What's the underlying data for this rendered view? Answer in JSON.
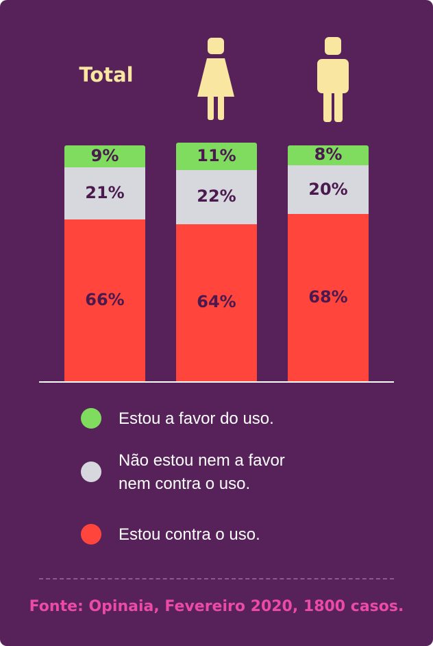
{
  "chart_data": {
    "type": "bar",
    "stacked": true,
    "categories": [
      "Total",
      "female-person-icon",
      "male-person-icon"
    ],
    "category_labels": [
      "Total",
      "",
      ""
    ],
    "series": [
      {
        "name": "Estou a favor do uso.",
        "color": "#7fdc5f",
        "values": [
          9,
          11,
          8
        ],
        "labels": [
          "9%",
          "11%",
          "8%"
        ]
      },
      {
        "name": "Não estou nem a favor nem contra o uso.",
        "color": "#d6d8dd",
        "values": [
          21,
          22,
          20
        ],
        "labels": [
          "21%",
          "22%",
          "20%"
        ]
      },
      {
        "name": "Estou contra o uso.",
        "color": "#ff453c",
        "values": [
          66,
          64,
          68
        ],
        "labels": [
          "66%",
          "64%",
          "68%"
        ]
      }
    ],
    "ylim": [
      0,
      96
    ]
  },
  "legend": [
    {
      "color": "#7fdc5f",
      "lines": [
        "Estou a favor do uso."
      ]
    },
    {
      "color": "#d6d8dd",
      "lines": [
        "Não estou nem a favor",
        "nem contra o uso."
      ]
    },
    {
      "color": "#ff453c",
      "lines": [
        "Estou contra o uso."
      ]
    }
  ],
  "source": "Fonte: Opinaia, Fevereiro 2020, 1800 casos.",
  "colors": {
    "background": "#57225a",
    "accent": "#f9e6a0",
    "source": "#ec4aa7"
  }
}
